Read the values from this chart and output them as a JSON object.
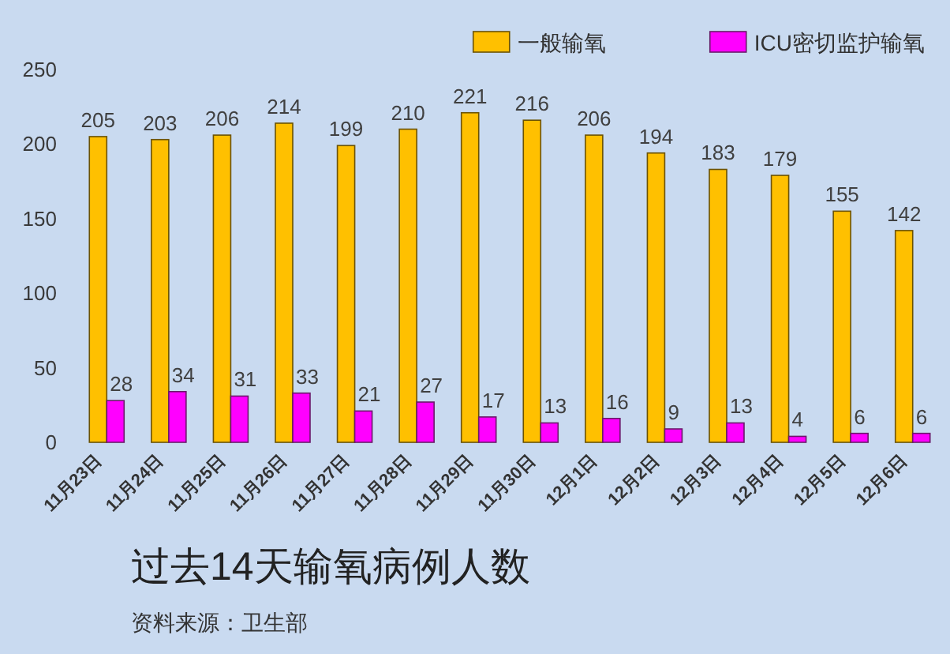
{
  "chart_data": {
    "type": "bar",
    "title": "过去14天输氧病例人数",
    "annotations": [
      "资料来源：卫生部"
    ],
    "categories": [
      "11月23日",
      "11月24日",
      "11月25日",
      "11月26日",
      "11月27日",
      "11月28日",
      "11月29日",
      "11月30日",
      "12月1日",
      "12月2日",
      "12月3日",
      "12月4日",
      "12月5日",
      "12月6日"
    ],
    "series": [
      {
        "name": "一般输氧",
        "color": "#ffc000",
        "values": [
          205,
          203,
          206,
          214,
          199,
          210,
          221,
          216,
          206,
          194,
          183,
          179,
          155,
          142
        ]
      },
      {
        "name": "ICU密切监护输氧",
        "color": "#ff00ff",
        "values": [
          28,
          34,
          31,
          33,
          21,
          27,
          17,
          13,
          16,
          9,
          13,
          4,
          6,
          6
        ]
      }
    ],
    "ylim": [
      0,
      250
    ],
    "yticks": [
      0,
      50,
      100,
      150,
      200,
      250
    ],
    "data_labels": true,
    "legend": "top right"
  }
}
